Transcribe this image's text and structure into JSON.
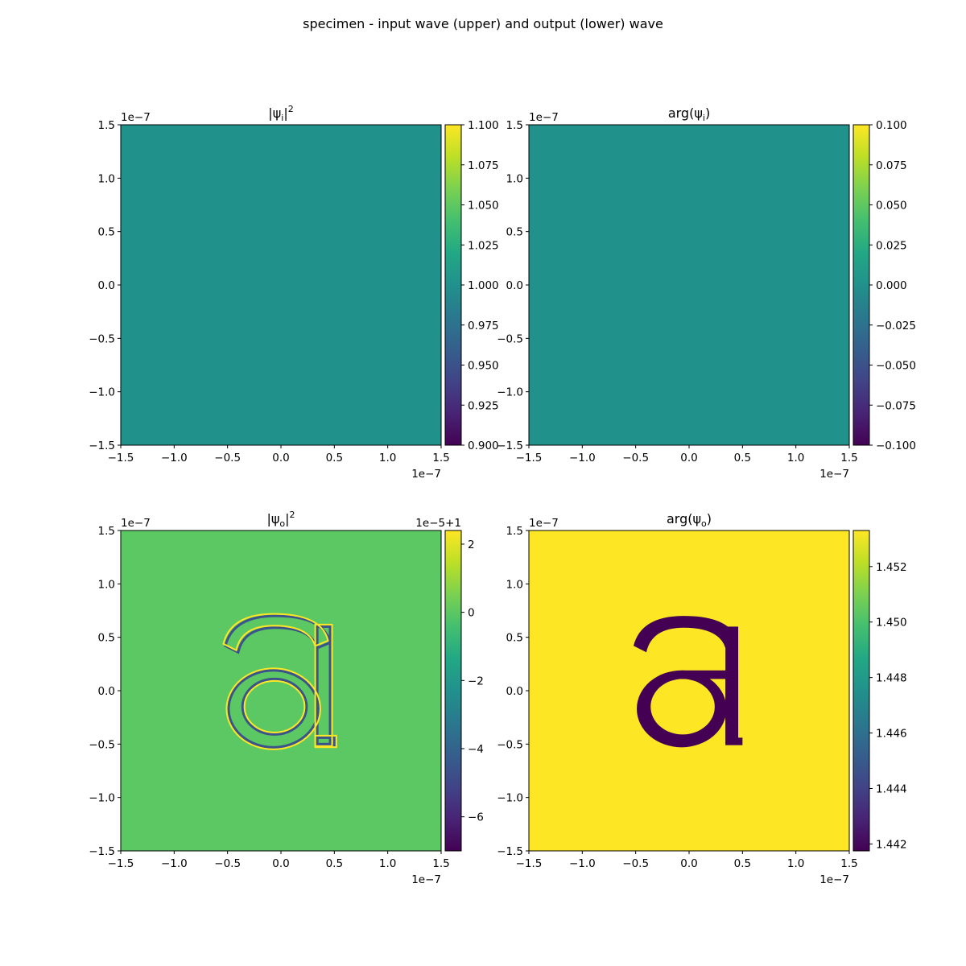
{
  "figure": {
    "suptitle": "specimen - input wave (upper) and output (lower) wave"
  },
  "colors": {
    "viridis": [
      "#440154",
      "#482475",
      "#414487",
      "#355f8d",
      "#2a788e",
      "#21918c",
      "#22a884",
      "#44bf70",
      "#7ad151",
      "#bddf26",
      "#fde725"
    ],
    "input_field": "#21918c",
    "output_intensity_background": "#5cc863",
    "output_phase_background": "#fde725",
    "output_phase_letter": "#440154",
    "edge_bright": "#fde725",
    "edge_dark": "#3b528b"
  },
  "chart_data": [
    {
      "type": "heatmap",
      "panel": "top-left",
      "title": {
        "base": "|ψ",
        "sub": "i",
        "close": "|",
        "sup": "2"
      },
      "x_ticks": [
        "−1.5",
        "−1.0",
        "−0.5",
        "0.0",
        "0.5",
        "1.0",
        "1.5"
      ],
      "y_ticks": [
        "−1.5",
        "−1.0",
        "−0.5",
        "0.0",
        "0.5",
        "1.0",
        "1.5"
      ],
      "x_offset": "1e−7",
      "y_offset": "1e−7",
      "xlim": [
        -1.5e-07,
        1.5e-07
      ],
      "ylim": [
        -1.5e-07,
        1.5e-07
      ],
      "field": "uniform",
      "value": 1.0,
      "colorbar": {
        "range": [
          0.9,
          1.1
        ],
        "ticks": [
          1.1,
          1.075,
          1.05,
          1.025,
          1.0,
          0.975,
          0.95,
          0.925,
          0.9
        ],
        "tick_labels": [
          "1.100",
          "1.075",
          "1.050",
          "1.025",
          "1.000",
          "0.975",
          "0.950",
          "0.925",
          "0.900"
        ],
        "offset_label": ""
      }
    },
    {
      "type": "heatmap",
      "panel": "top-right",
      "title": {
        "base": "arg(ψ",
        "sub": "i",
        "close": ")",
        "sup": ""
      },
      "x_ticks": [
        "−1.5",
        "−1.0",
        "−0.5",
        "0.0",
        "0.5",
        "1.0",
        "1.5"
      ],
      "y_ticks": [
        "−1.5",
        "−1.0",
        "−0.5",
        "0.0",
        "0.5",
        "1.0",
        "1.5"
      ],
      "x_offset": "1e−7",
      "y_offset": "1e−7",
      "xlim": [
        -1.5e-07,
        1.5e-07
      ],
      "ylim": [
        -1.5e-07,
        1.5e-07
      ],
      "field": "uniform",
      "value": 0.0,
      "colorbar": {
        "range": [
          -0.1,
          0.1
        ],
        "ticks": [
          0.1,
          0.075,
          0.05,
          0.025,
          0.0,
          -0.025,
          -0.05,
          -0.075,
          -0.1
        ],
        "tick_labels": [
          "0.100",
          "0.075",
          "0.050",
          "0.025",
          "0.000",
          "−0.025",
          "−0.050",
          "−0.075",
          "−0.100"
        ],
        "offset_label": ""
      }
    },
    {
      "type": "heatmap",
      "panel": "bottom-left",
      "title": {
        "base": "|ψ",
        "sub": "o",
        "close": "|",
        "sup": "2"
      },
      "x_ticks": [
        "−1.5",
        "−1.0",
        "−0.5",
        "0.0",
        "0.5",
        "1.0",
        "1.5"
      ],
      "y_ticks": [
        "−1.5",
        "−1.0",
        "−0.5",
        "0.0",
        "0.5",
        "1.0",
        "1.5"
      ],
      "x_offset": "1e−7",
      "y_offset": "1e−7",
      "xlim": [
        -1.5e-07,
        1.5e-07
      ],
      "ylim": [
        -1.5e-07,
        1.5e-07
      ],
      "field": "letter-edges",
      "letter": "a",
      "colorbar": {
        "range": [
          -7,
          2.4
        ],
        "ticks": [
          2,
          0,
          -2,
          -4,
          -6
        ],
        "tick_labels": [
          "2",
          "0",
          "−2",
          "−4",
          "−6"
        ],
        "offset_label": "1e−5+1"
      }
    },
    {
      "type": "heatmap",
      "panel": "bottom-right",
      "title": {
        "base": "arg(ψ",
        "sub": "o",
        "close": ")",
        "sup": ""
      },
      "x_ticks": [
        "−1.5",
        "−1.0",
        "−0.5",
        "0.0",
        "0.5",
        "1.0",
        "1.5"
      ],
      "y_ticks": [
        "−1.5",
        "−1.0",
        "−0.5",
        "0.0",
        "0.5",
        "1.0",
        "1.5"
      ],
      "x_offset": "1e−7",
      "y_offset": "1e−7",
      "xlim": [
        -1.5e-07,
        1.5e-07
      ],
      "ylim": [
        -1.5e-07,
        1.5e-07
      ],
      "field": "letter-filled",
      "letter": "a",
      "colorbar": {
        "range": [
          1.44175,
          1.4533
        ],
        "ticks": [
          1.452,
          1.45,
          1.448,
          1.446,
          1.444,
          1.442
        ],
        "tick_labels": [
          "1.452",
          "1.450",
          "1.448",
          "1.446",
          "1.444",
          "1.442"
        ],
        "offset_label": ""
      }
    }
  ]
}
